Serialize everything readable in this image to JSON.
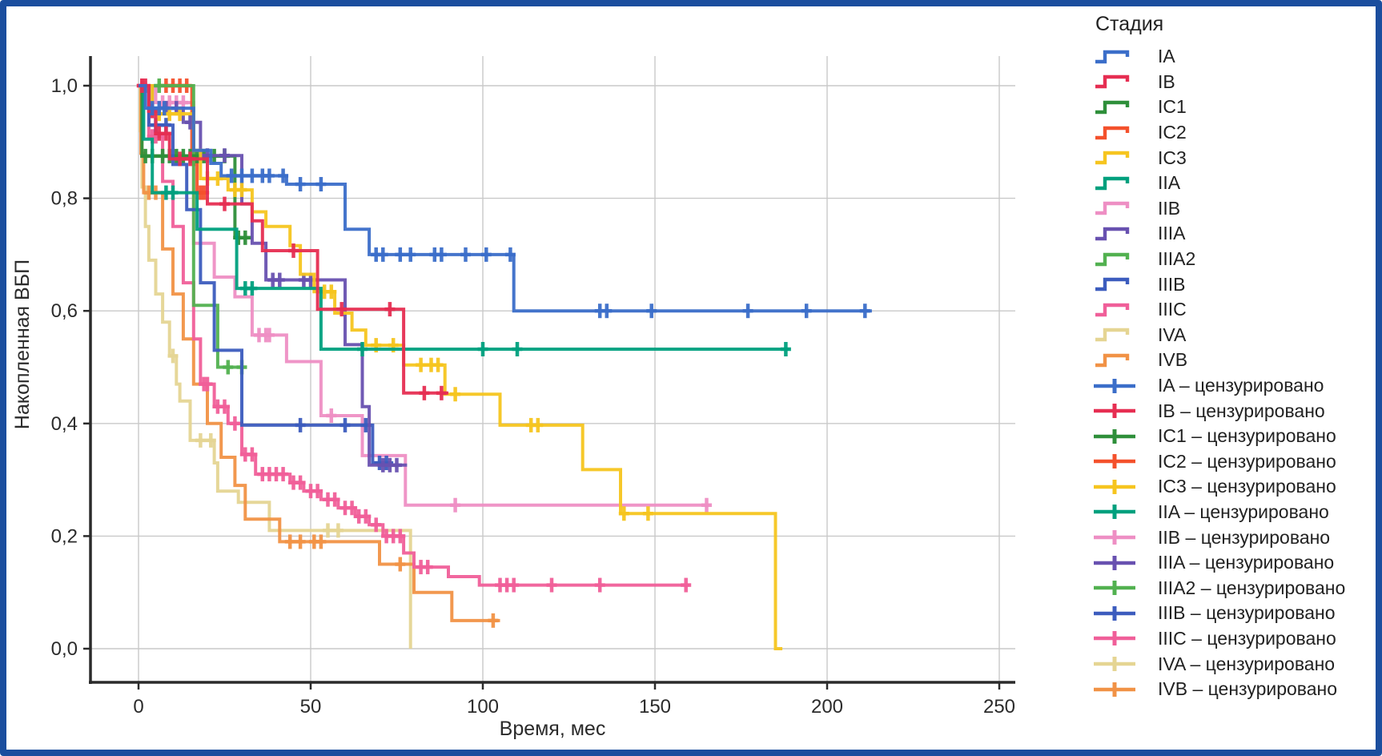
{
  "figure": {
    "border_color": "#1b4e9e",
    "background": "#ffffff",
    "grid_color": "#c9c9c9",
    "axis_color": "#2b2b2b"
  },
  "chart_data": {
    "type": "line",
    "subtype": "kaplan-meier-step",
    "title": "",
    "xlabel": "Время, мес",
    "ylabel": "Накопленная ВБП",
    "legend_title": "Стадия",
    "censored_suffix": " – цензурировано",
    "xlim": [
      -14,
      255
    ],
    "ylim": [
      0.0,
      1.0
    ],
    "grid": true,
    "legend_position": "right",
    "x_ticks": [
      {
        "t": 0,
        "label": "0"
      },
      {
        "t": 50,
        "label": "50"
      },
      {
        "t": 100,
        "label": "100"
      },
      {
        "t": 150,
        "label": "150"
      },
      {
        "t": 200,
        "label": "200"
      },
      {
        "t": 250,
        "label": "250"
      }
    ],
    "y_ticks": [
      {
        "v": 1.0,
        "label": "1,0"
      },
      {
        "v": 0.8,
        "label": "0,8"
      },
      {
        "v": 0.6,
        "label": "0,6"
      },
      {
        "v": 0.4,
        "label": "0,4"
      },
      {
        "v": 0.2,
        "label": "0,2"
      },
      {
        "v": 0.0,
        "label": "0,0"
      }
    ],
    "series": [
      {
        "name": "IA",
        "color": "#3b6ec9",
        "points": [
          [
            2,
            0.96
          ],
          [
            16,
            0.885
          ],
          [
            21,
            0.862
          ],
          [
            24,
            0.84
          ],
          [
            43,
            0.825
          ],
          [
            60,
            0.745
          ],
          [
            67,
            0.7
          ],
          [
            109,
            0.6
          ]
        ],
        "end": 213,
        "censors": [
          [
            4,
            0.96
          ],
          [
            6,
            0.96
          ],
          [
            7.5,
            0.96
          ],
          [
            27,
            0.84
          ],
          [
            30,
            0.84
          ],
          [
            33,
            0.84
          ],
          [
            36,
            0.84
          ],
          [
            38,
            0.84
          ],
          [
            42,
            0.84
          ],
          [
            47,
            0.825
          ],
          [
            53,
            0.825
          ],
          [
            69,
            0.7
          ],
          [
            71,
            0.7
          ],
          [
            76,
            0.7
          ],
          [
            79,
            0.7
          ],
          [
            86,
            0.7
          ],
          [
            88,
            0.7
          ],
          [
            95,
            0.7
          ],
          [
            101,
            0.7
          ],
          [
            108,
            0.7
          ],
          [
            134,
            0.6
          ],
          [
            136,
            0.6
          ],
          [
            149,
            0.6
          ],
          [
            177,
            0.6
          ],
          [
            194,
            0.6
          ],
          [
            211,
            0.6
          ]
        ]
      },
      {
        "name": "IB",
        "color": "#e62e52",
        "points": [
          [
            3,
            0.955
          ],
          [
            5,
            0.915
          ],
          [
            9,
            0.87
          ],
          [
            20,
            0.79
          ],
          [
            33,
            0.76
          ],
          [
            36,
            0.707
          ],
          [
            52,
            0.603
          ],
          [
            77,
            0.454
          ]
        ],
        "end": 90,
        "censors": [
          [
            1,
            1.0
          ],
          [
            2,
            1.0
          ],
          [
            4,
            0.955
          ],
          [
            6,
            0.915
          ],
          [
            8,
            0.915
          ],
          [
            12,
            0.87
          ],
          [
            15,
            0.87
          ],
          [
            25,
            0.79
          ],
          [
            45,
            0.707
          ],
          [
            59,
            0.603
          ],
          [
            73,
            0.603
          ],
          [
            83,
            0.454
          ],
          [
            88,
            0.454
          ]
        ]
      },
      {
        "name": "IC1",
        "color": "#2e8f3a",
        "points": [
          [
            1,
            0.875
          ],
          [
            28,
            0.73
          ]
        ],
        "end": 33,
        "censors": [
          [
            2,
            0.875
          ],
          [
            4,
            0.875
          ],
          [
            7,
            0.875
          ],
          [
            9,
            0.875
          ],
          [
            11,
            0.875
          ],
          [
            13,
            0.875
          ],
          [
            15,
            0.875
          ],
          [
            17,
            0.875
          ],
          [
            19,
            0.875
          ],
          [
            22,
            0.875
          ],
          [
            25,
            0.875
          ],
          [
            29,
            0.73
          ],
          [
            31,
            0.73
          ]
        ]
      },
      {
        "name": "IC2",
        "color": "#f4512c",
        "points": [
          [
            15.5,
            0.87
          ],
          [
            17,
            0.81
          ]
        ],
        "end": 20,
        "censors": [
          [
            8,
            1.0
          ],
          [
            10,
            1.0
          ],
          [
            12,
            1.0
          ],
          [
            14,
            1.0
          ],
          [
            16,
            0.87
          ],
          [
            18,
            0.81
          ],
          [
            19,
            0.81
          ]
        ]
      },
      {
        "name": "IC3",
        "color": "#f6c51f",
        "points": [
          [
            4,
            0.95
          ],
          [
            16,
            0.885
          ],
          [
            18,
            0.835
          ],
          [
            26,
            0.815
          ],
          [
            33,
            0.776
          ],
          [
            37,
            0.75
          ],
          [
            44,
            0.716
          ],
          [
            47,
            0.665
          ],
          [
            51,
            0.634
          ],
          [
            57,
            0.596
          ],
          [
            62,
            0.566
          ],
          [
            66,
            0.539
          ],
          [
            77,
            0.504
          ],
          [
            89,
            0.452
          ],
          [
            105,
            0.397
          ],
          [
            129,
            0.318
          ],
          [
            140,
            0.24
          ],
          [
            185,
            0.0
          ]
        ],
        "end": 187,
        "censors": [
          [
            6,
            0.95
          ],
          [
            9,
            0.95
          ],
          [
            12,
            0.95
          ],
          [
            20,
            0.835
          ],
          [
            23,
            0.835
          ],
          [
            28,
            0.815
          ],
          [
            30,
            0.815
          ],
          [
            54,
            0.634
          ],
          [
            56,
            0.634
          ],
          [
            69,
            0.539
          ],
          [
            74,
            0.539
          ],
          [
            82,
            0.504
          ],
          [
            85,
            0.504
          ],
          [
            87,
            0.504
          ],
          [
            92,
            0.452
          ],
          [
            114,
            0.397
          ],
          [
            116,
            0.397
          ],
          [
            141,
            0.24
          ],
          [
            148,
            0.24
          ]
        ]
      },
      {
        "name": "IIA",
        "color": "#00a07e",
        "points": [
          [
            1.5,
            0.905
          ],
          [
            4,
            0.81
          ],
          [
            17,
            0.745
          ],
          [
            28.5,
            0.64
          ],
          [
            53,
            0.532
          ]
        ],
        "end": 189,
        "censors": [
          [
            8,
            0.81
          ],
          [
            10,
            0.81
          ],
          [
            31,
            0.64
          ],
          [
            33,
            0.64
          ],
          [
            65,
            0.532
          ],
          [
            100,
            0.532
          ],
          [
            110,
            0.532
          ],
          [
            188,
            0.532
          ]
        ]
      },
      {
        "name": "IIB",
        "color": "#ee8fc4",
        "points": [
          [
            5,
            0.97
          ],
          [
            16,
            0.72
          ],
          [
            22,
            0.66
          ],
          [
            28,
            0.625
          ],
          [
            33,
            0.557
          ],
          [
            43,
            0.51
          ],
          [
            53,
            0.414
          ],
          [
            65,
            0.343
          ],
          [
            77.5,
            0.255
          ]
        ],
        "end": 166,
        "censors": [
          [
            7,
            0.97
          ],
          [
            9,
            0.97
          ],
          [
            11,
            0.97
          ],
          [
            13,
            0.97
          ],
          [
            35,
            0.557
          ],
          [
            37,
            0.557
          ],
          [
            38,
            0.557
          ],
          [
            56,
            0.414
          ],
          [
            92,
            0.255
          ],
          [
            165,
            0.255
          ]
        ]
      },
      {
        "name": "IIIA",
        "color": "#6851b0",
        "points": [
          [
            4,
            0.96
          ],
          [
            13,
            0.935
          ],
          [
            18,
            0.876
          ],
          [
            30,
            0.79
          ],
          [
            33,
            0.72
          ],
          [
            37,
            0.655
          ],
          [
            60,
            0.54
          ],
          [
            65,
            0.43
          ],
          [
            67,
            0.326
          ]
        ],
        "end": 78,
        "censors": [
          [
            8,
            0.96
          ],
          [
            11,
            0.96
          ],
          [
            15,
            0.935
          ],
          [
            20,
            0.876
          ],
          [
            25,
            0.876
          ],
          [
            39,
            0.655
          ],
          [
            41,
            0.655
          ],
          [
            48,
            0.655
          ],
          [
            50,
            0.655
          ],
          [
            71,
            0.326
          ],
          [
            73,
            0.326
          ],
          [
            75,
            0.326
          ]
        ]
      },
      {
        "name": "IIIA2",
        "color": "#52b150",
        "points": [
          [
            16,
            0.61
          ],
          [
            23,
            0.5
          ]
        ],
        "end": 30,
        "censors": [
          [
            6,
            1.0
          ],
          [
            26,
            0.5
          ],
          [
            30,
            0.5
          ]
        ]
      },
      {
        "name": "IIIB",
        "color": "#3c5cbe",
        "points": [
          [
            3,
            0.93
          ],
          [
            10,
            0.86
          ],
          [
            14,
            0.78
          ],
          [
            18,
            0.65
          ],
          [
            22,
            0.53
          ],
          [
            30,
            0.397
          ],
          [
            68,
            0.33
          ]
        ],
        "end": 74,
        "censors": [
          [
            5,
            0.93
          ],
          [
            8,
            0.93
          ],
          [
            47,
            0.397
          ],
          [
            60,
            0.397
          ],
          [
            66,
            0.397
          ],
          [
            70,
            0.33
          ],
          [
            72,
            0.33
          ]
        ]
      },
      {
        "name": "IIIC",
        "color": "#f05f99",
        "points": [
          [
            3,
            0.91
          ],
          [
            7,
            0.83
          ],
          [
            10,
            0.75
          ],
          [
            13,
            0.65
          ],
          [
            16,
            0.55
          ],
          [
            18,
            0.47
          ],
          [
            22,
            0.43
          ],
          [
            26,
            0.4
          ],
          [
            30,
            0.345
          ],
          [
            34,
            0.31
          ],
          [
            44,
            0.295
          ],
          [
            48,
            0.28
          ],
          [
            53,
            0.265
          ],
          [
            58,
            0.25
          ],
          [
            63,
            0.235
          ],
          [
            67,
            0.22
          ],
          [
            71,
            0.2
          ],
          [
            77,
            0.17
          ],
          [
            80,
            0.145
          ],
          [
            90,
            0.128
          ],
          [
            99,
            0.113
          ]
        ],
        "end": 160,
        "censors": [
          [
            1,
            1.0
          ],
          [
            4,
            0.91
          ],
          [
            5,
            0.91
          ],
          [
            19,
            0.47
          ],
          [
            20,
            0.47
          ],
          [
            23,
            0.43
          ],
          [
            25,
            0.43
          ],
          [
            28,
            0.4
          ],
          [
            31,
            0.345
          ],
          [
            33,
            0.345
          ],
          [
            36,
            0.31
          ],
          [
            38,
            0.31
          ],
          [
            40,
            0.31
          ],
          [
            42,
            0.31
          ],
          [
            45,
            0.295
          ],
          [
            47,
            0.295
          ],
          [
            50,
            0.28
          ],
          [
            52,
            0.28
          ],
          [
            55,
            0.265
          ],
          [
            57,
            0.265
          ],
          [
            60,
            0.25
          ],
          [
            62,
            0.25
          ],
          [
            64,
            0.235
          ],
          [
            66,
            0.235
          ],
          [
            69,
            0.22
          ],
          [
            72,
            0.2
          ],
          [
            74,
            0.2
          ],
          [
            76,
            0.2
          ],
          [
            82,
            0.145
          ],
          [
            84,
            0.145
          ],
          [
            105,
            0.113
          ],
          [
            107,
            0.113
          ],
          [
            109,
            0.113
          ],
          [
            120,
            0.113
          ],
          [
            134,
            0.113
          ],
          [
            159,
            0.113
          ]
        ]
      },
      {
        "name": "IVA",
        "color": "#e5d593",
        "points": [
          [
            0.5,
            0.92
          ],
          [
            1,
            0.82
          ],
          [
            2,
            0.75
          ],
          [
            3,
            0.69
          ],
          [
            5,
            0.63
          ],
          [
            7,
            0.58
          ],
          [
            9,
            0.52
          ],
          [
            11,
            0.47
          ],
          [
            12,
            0.44
          ],
          [
            15,
            0.37
          ],
          [
            22,
            0.33
          ],
          [
            23,
            0.28
          ],
          [
            29,
            0.26
          ],
          [
            38,
            0.21
          ],
          [
            79,
            0.0
          ]
        ],
        "end": 79,
        "censors": [
          [
            10,
            0.52
          ],
          [
            18,
            0.37
          ],
          [
            21,
            0.37
          ],
          [
            55,
            0.21
          ],
          [
            58,
            0.21
          ]
        ]
      },
      {
        "name": "IVB",
        "color": "#f19246",
        "points": [
          [
            0.7,
            0.88
          ],
          [
            1.5,
            0.81
          ],
          [
            7,
            0.71
          ],
          [
            10,
            0.63
          ],
          [
            13,
            0.55
          ],
          [
            16,
            0.47
          ],
          [
            20,
            0.4
          ],
          [
            24,
            0.34
          ],
          [
            28,
            0.29
          ],
          [
            31,
            0.23
          ],
          [
            41,
            0.19
          ],
          [
            70,
            0.15
          ],
          [
            80,
            0.1
          ],
          [
            91,
            0.05
          ]
        ],
        "end": 105,
        "censors": [
          [
            3,
            0.81
          ],
          [
            5,
            0.81
          ],
          [
            44,
            0.19
          ],
          [
            47,
            0.19
          ],
          [
            51,
            0.19
          ],
          [
            53,
            0.19
          ],
          [
            76,
            0.15
          ],
          [
            103,
            0.05
          ]
        ]
      }
    ]
  }
}
